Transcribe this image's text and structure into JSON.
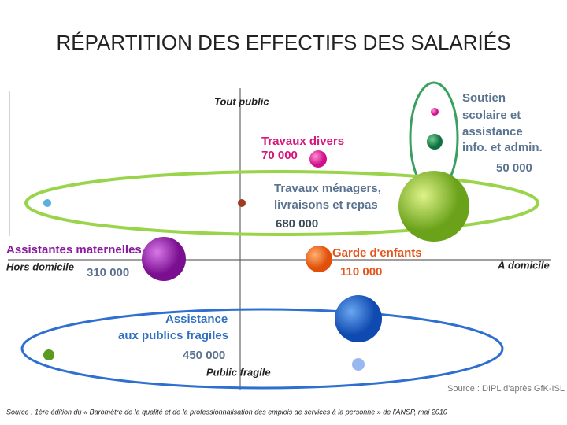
{
  "title": "RÉPARTITION DES EFFECTIFS DES SALARIÉS",
  "axes": {
    "top": "Tout public",
    "bottom": "Public fragile",
    "left": "Hors domicile",
    "right": "À domicile"
  },
  "groups": [
    {
      "label": [
        "Soutien",
        "scolaire et",
        "assistance",
        "info. et admin."
      ],
      "value": "50 000"
    },
    {
      "label": [
        "Travaux divers"
      ],
      "value": "70 000"
    },
    {
      "label": [
        "Travaux ménagers,",
        "livraisons et repas"
      ],
      "value": "680 000"
    },
    {
      "label": [
        "Assistantes maternelles"
      ],
      "value": "310 000"
    },
    {
      "label": [
        "Garde d'enfants"
      ],
      "value": "110 000"
    },
    {
      "label": [
        "Assistance",
        "aux publics fragiles"
      ],
      "value": "450 000"
    }
  ],
  "image_source": "Source : DIPL d'après GfK-ISL",
  "source": "Source : 1ère édition du « Baromètre de la qualité et de la professionnalisation des emplois de services à la personne » de l'ANSP, mai 2010"
}
